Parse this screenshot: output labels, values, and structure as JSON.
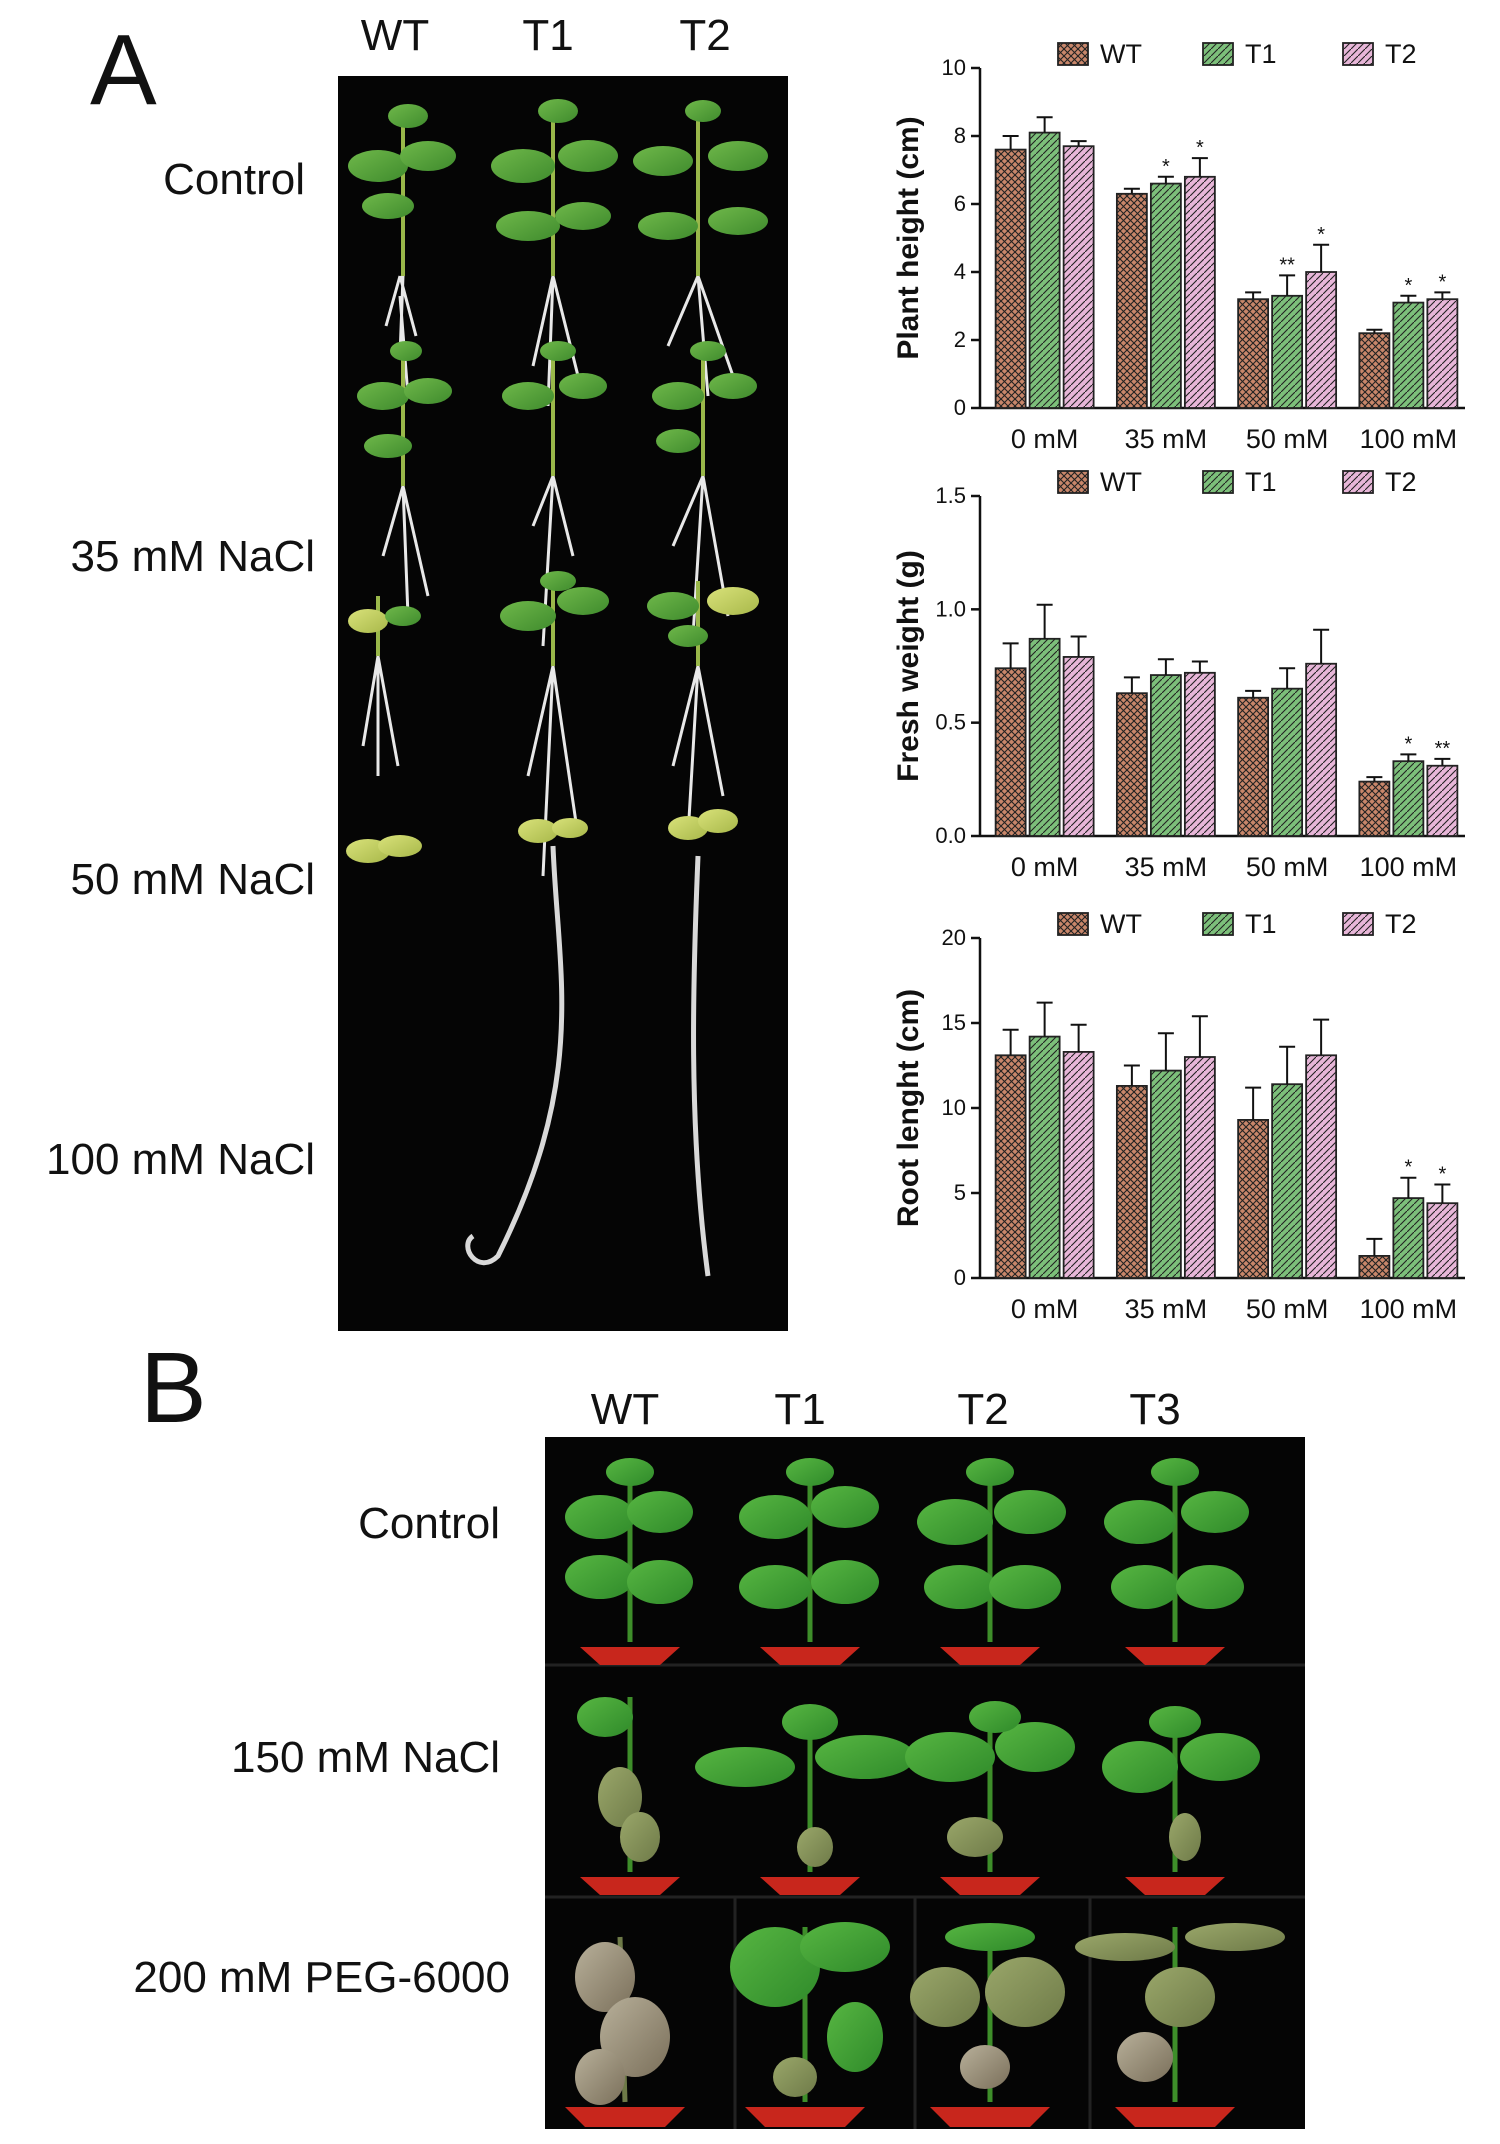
{
  "panelA": {
    "letter": "A",
    "columns": [
      "WT",
      "T1",
      "T2"
    ],
    "rows": [
      "Control",
      "35 mM NaCl",
      "50 mM NaCl",
      "100 mM NaCl"
    ]
  },
  "panelB": {
    "letter": "B",
    "columns": [
      "WT",
      "T1",
      "T2",
      "T3"
    ],
    "rows": [
      "Control",
      "150 mM NaCl",
      "200 mM PEG-6000"
    ]
  },
  "colors": {
    "WT": "#c8866a",
    "T1": "#7cbf7a",
    "T2": "#e7b6d8"
  },
  "chart_data": [
    {
      "type": "bar",
      "ylabel": "Plant height (cm)",
      "categories": [
        "0 mM",
        "35 mM",
        "50 mM",
        "100 mM"
      ],
      "ylim": [
        0,
        10
      ],
      "yticks": [
        "0",
        "2",
        "4",
        "6",
        "8",
        "10"
      ],
      "legend": "top",
      "series": [
        {
          "name": "WT",
          "values": [
            7.6,
            6.3,
            3.2,
            2.2
          ],
          "err": [
            0.4,
            0.15,
            0.2,
            0.1
          ],
          "sig": [
            "",
            "",
            "",
            ""
          ]
        },
        {
          "name": "T1",
          "values": [
            8.1,
            6.6,
            3.3,
            3.1
          ],
          "err": [
            0.45,
            0.2,
            0.6,
            0.2
          ],
          "sig": [
            "",
            "*",
            "**",
            "*"
          ]
        },
        {
          "name": "T2",
          "values": [
            7.7,
            6.8,
            4.0,
            3.2
          ],
          "err": [
            0.15,
            0.55,
            0.8,
            0.2
          ],
          "sig": [
            "",
            "*",
            "*",
            "*"
          ]
        }
      ]
    },
    {
      "type": "bar",
      "ylabel": "Fresh weight (g)",
      "categories": [
        "0 mM",
        "35 mM",
        "50 mM",
        "100 mM"
      ],
      "ylim": [
        0,
        1.5
      ],
      "yticks": [
        "0.0",
        "0.5",
        "1.0",
        "1.5"
      ],
      "legend": "top",
      "series": [
        {
          "name": "WT",
          "values": [
            0.74,
            0.63,
            0.61,
            0.24
          ],
          "err": [
            0.11,
            0.07,
            0.03,
            0.02
          ],
          "sig": [
            "",
            "",
            "",
            ""
          ]
        },
        {
          "name": "T1",
          "values": [
            0.87,
            0.71,
            0.65,
            0.33
          ],
          "err": [
            0.15,
            0.07,
            0.09,
            0.03
          ],
          "sig": [
            "",
            "",
            "",
            "*"
          ]
        },
        {
          "name": "T2",
          "values": [
            0.79,
            0.72,
            0.76,
            0.31
          ],
          "err": [
            0.09,
            0.05,
            0.15,
            0.03
          ],
          "sig": [
            "",
            "",
            "",
            "**"
          ]
        }
      ]
    },
    {
      "type": "bar",
      "ylabel": "Root lenght (cm)",
      "categories": [
        "0 mM",
        "35 mM",
        "50 mM",
        "100 mM"
      ],
      "ylim": [
        0,
        20
      ],
      "yticks": [
        "0",
        "5",
        "10",
        "15",
        "20"
      ],
      "legend": "top",
      "series": [
        {
          "name": "WT",
          "values": [
            13.1,
            11.3,
            9.3,
            1.3
          ],
          "err": [
            1.5,
            1.2,
            1.9,
            1.0
          ],
          "sig": [
            "",
            "",
            "",
            ""
          ]
        },
        {
          "name": "T1",
          "values": [
            14.2,
            12.2,
            11.4,
            4.7
          ],
          "err": [
            2.0,
            2.2,
            2.2,
            1.2
          ],
          "sig": [
            "",
            "",
            "",
            "*"
          ]
        },
        {
          "name": "T2",
          "values": [
            13.3,
            13.0,
            13.1,
            4.4
          ],
          "err": [
            1.6,
            2.4,
            2.1,
            1.1
          ],
          "sig": [
            "",
            "",
            "",
            "*"
          ]
        }
      ]
    }
  ]
}
